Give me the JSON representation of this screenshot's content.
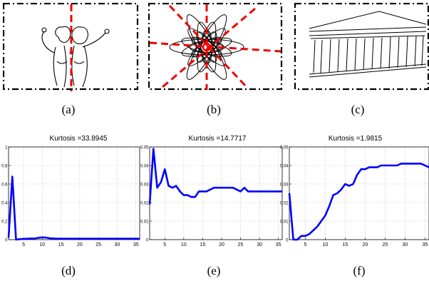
{
  "figure": {
    "captions": [
      "(a)",
      "(b)",
      "(c)",
      "(d)",
      "(e)",
      "(f)"
    ]
  },
  "chart_data": [
    {
      "type": "line",
      "title": "Kurtosis =33.8945",
      "xlabel": "",
      "ylabel": "",
      "xlim": [
        1,
        36
      ],
      "ylim": [
        0,
        1
      ],
      "xticks": [
        5,
        10,
        15,
        20,
        25,
        30,
        35
      ],
      "yticks": [
        0,
        0.2,
        0.4,
        0.6,
        0.8,
        1
      ],
      "ytick_labels": [
        "0",
        "0.2",
        "0.4",
        "0.6",
        "0.8",
        "1"
      ],
      "grid": true,
      "color": "#0000ff",
      "x": [
        1,
        2,
        3,
        4,
        5,
        6,
        7,
        8,
        9,
        10,
        11,
        12,
        13,
        14,
        15,
        16,
        17,
        18,
        19,
        20,
        21,
        22,
        23,
        24,
        25,
        26,
        27,
        28,
        29,
        30,
        31,
        32,
        33,
        34,
        35,
        36
      ],
      "y": [
        0.02,
        0.68,
        0.0,
        0.005,
        0.008,
        0.01,
        0.012,
        0.012,
        0.02,
        0.025,
        0.022,
        0.015,
        0.012,
        0.01,
        0.01,
        0.01,
        0.01,
        0.01,
        0.01,
        0.01,
        0.01,
        0.01,
        0.01,
        0.01,
        0.01,
        0.01,
        0.01,
        0.01,
        0.01,
        0.01,
        0.01,
        0.01,
        0.01,
        0.01,
        0.01,
        0.01
      ]
    },
    {
      "type": "line",
      "title": "Kurtosis =14.7717",
      "xlabel": "",
      "ylabel": "",
      "xlim": [
        1,
        36
      ],
      "ylim": [
        0,
        0.05
      ],
      "xticks": [
        5,
        10,
        15,
        20,
        25,
        30,
        35
      ],
      "yticks": [
        0,
        0.01,
        0.02,
        0.03,
        0.04,
        0.05
      ],
      "ytick_labels": [
        "0",
        "0.01",
        "0.02",
        "0.03",
        "0.04",
        "0.05"
      ],
      "grid": true,
      "color": "#0000ff",
      "x": [
        1,
        2,
        3,
        4,
        5,
        6,
        7,
        8,
        9,
        10,
        11,
        12,
        13,
        14,
        15,
        16,
        17,
        18,
        19,
        20,
        21,
        22,
        23,
        24,
        25,
        26,
        27,
        28,
        29,
        30,
        31,
        32,
        33,
        34,
        35,
        36
      ],
      "y": [
        0.019,
        0.049,
        0.028,
        0.031,
        0.038,
        0.029,
        0.028,
        0.029,
        0.026,
        0.024,
        0.024,
        0.023,
        0.023,
        0.026,
        0.026,
        0.026,
        0.027,
        0.028,
        0.028,
        0.028,
        0.028,
        0.028,
        0.028,
        0.027,
        0.026,
        0.028,
        0.026,
        0.026,
        0.026,
        0.026,
        0.026,
        0.026,
        0.026,
        0.026,
        0.026,
        0.026
      ]
    },
    {
      "type": "line",
      "title": "Kurtosis =1.9815",
      "xlabel": "",
      "ylabel": "",
      "xlim": [
        1,
        36
      ],
      "ylim": [
        0,
        0.05
      ],
      "xticks": [
        5,
        10,
        15,
        20,
        25,
        30,
        35
      ],
      "yticks": [
        0,
        0.01,
        0.02,
        0.03,
        0.04,
        0.05
      ],
      "ytick_labels": [
        "0",
        "0.01",
        "0.02",
        "0.03",
        "0.04",
        "0.05"
      ],
      "grid": true,
      "color": "#0000ff",
      "x": [
        1,
        2,
        3,
        4,
        5,
        6,
        7,
        8,
        9,
        10,
        11,
        12,
        13,
        14,
        15,
        16,
        17,
        18,
        19,
        20,
        21,
        22,
        23,
        24,
        25,
        26,
        27,
        28,
        29,
        30,
        31,
        32,
        33,
        34,
        35,
        36
      ],
      "y": [
        0.025,
        0.0,
        0.0,
        0.002,
        0.002,
        0.003,
        0.005,
        0.007,
        0.01,
        0.013,
        0.018,
        0.024,
        0.025,
        0.027,
        0.03,
        0.029,
        0.03,
        0.035,
        0.038,
        0.038,
        0.039,
        0.039,
        0.039,
        0.04,
        0.04,
        0.04,
        0.04,
        0.04,
        0.041,
        0.041,
        0.041,
        0.041,
        0.041,
        0.041,
        0.04,
        0.039
      ]
    }
  ]
}
